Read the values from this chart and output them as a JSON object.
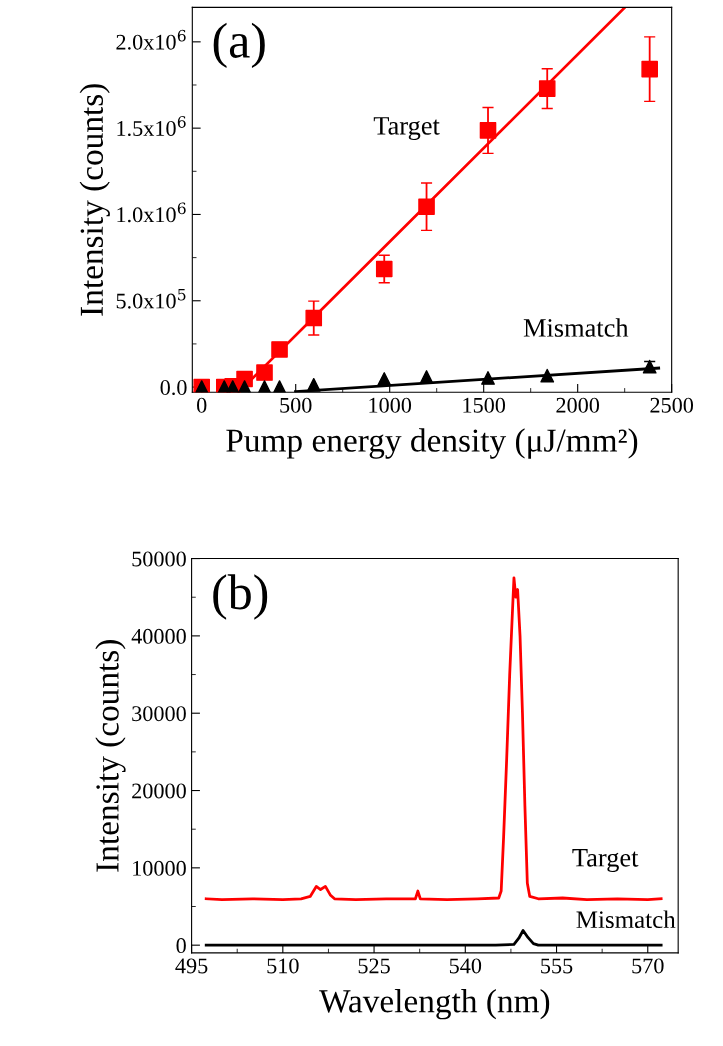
{
  "chart_data": [
    {
      "type": "scatter",
      "xlabel": "Pump energy density (μJ/mm²)",
      "ylabel": "Intensity (counts)",
      "xlim": [
        -50,
        2500
      ],
      "ylim": [
        -30000,
        2200000
      ],
      "xticks": [
        0,
        500,
        1000,
        1500,
        2000,
        2500
      ],
      "yticks": [
        {
          "value": 0,
          "label": "0.0"
        },
        {
          "value": 500000,
          "label": "5.0x10$^{5}$"
        },
        {
          "value": 1000000,
          "label": "1.0x10$^{6}$"
        },
        {
          "value": 1500000,
          "label": "1.5x10$^{6}$"
        },
        {
          "value": 2000000,
          "label": "2.0x10$^{6}$"
        }
      ],
      "annotations": [
        "(a)",
        "Target",
        "Mismatch"
      ],
      "series": [
        {
          "marker": "square",
          "color": "#ff0000",
          "x": [
            0,
            120,
            165,
            228,
            334,
            414,
            596,
            971,
            1196,
            1523,
            1838,
            2383
          ],
          "values": [
            0,
            0,
            5000,
            47000,
            84000,
            218000,
            400000,
            684000,
            1045000,
            1487000,
            1729000,
            1842000
          ],
          "errors": [
            null,
            null,
            null,
            null,
            null,
            null,
            98000,
            80000,
            137000,
            133000,
            115000,
            187000
          ]
        },
        {
          "type": "line",
          "marker": "none",
          "color": "#ff0000",
          "x": [
            196,
            2249
          ],
          "values": [
            -30000,
            2197000
          ]
        },
        {
          "marker": "triangle",
          "color": "#000000",
          "x": [
            0,
            120,
            165,
            228,
            334,
            414,
            596,
            971,
            1196,
            1523,
            1838,
            2383
          ],
          "values": [
            0,
            0,
            0,
            0,
            0,
            0,
            13000,
            47000,
            58000,
            53000,
            66000,
            118000
          ],
          "errors": [
            null,
            null,
            null,
            null,
            null,
            null,
            null,
            null,
            null,
            null,
            null,
            30000
          ]
        },
        {
          "type": "line",
          "marker": "none",
          "color": "#000000",
          "x": [
            499,
            2431
          ],
          "values": [
            -26000,
            110000
          ]
        }
      ]
    },
    {
      "type": "line",
      "xlabel": "Wavelength (nm)",
      "ylabel": "Intensity (counts)",
      "xlim": [
        495,
        575
      ],
      "ylim": [
        -1000,
        50000
      ],
      "xticks": [
        495,
        510,
        525,
        540,
        555,
        570
      ],
      "yticks": [
        0,
        10000,
        20000,
        30000,
        40000,
        50000
      ],
      "annotations": [
        "(b)",
        "Target",
        "Mismatch"
      ],
      "series": [
        {
          "marker": "none",
          "color": "#ff0000",
          "x": [
            497.4,
            500,
            505,
            510,
            513,
            514.5,
            515.5,
            516.2,
            517,
            517.8,
            518.5,
            522,
            527,
            531.8,
            532.2,
            532.6,
            537,
            542,
            545.5,
            545.9,
            546.3,
            546.8,
            547.3,
            547.8,
            548.0,
            548.3,
            548.6,
            549,
            549.4,
            549.8,
            550.2,
            550.6,
            552,
            556,
            560,
            565,
            570,
            572.2
          ],
          "values": [
            6000,
            5900,
            6000,
            5900,
            6000,
            6300,
            7600,
            7200,
            7600,
            6500,
            6000,
            5900,
            6000,
            6000,
            7000,
            6000,
            5900,
            6000,
            6100,
            7000,
            14000,
            24000,
            35000,
            44000,
            47500,
            45000,
            46000,
            40000,
            30000,
            18000,
            8000,
            6300,
            6000,
            6100,
            5900,
            6000,
            5900,
            6000
          ]
        },
        {
          "marker": "none",
          "color": "#000000",
          "x": [
            497.4,
            510,
            530,
            545,
            548,
            548.8,
            549.5,
            550.3,
            551.2,
            552,
            560,
            572.2
          ],
          "values": [
            0,
            0,
            0,
            0,
            100,
            900,
            1900,
            1000,
            200,
            0,
            0,
            0
          ]
        }
      ]
    }
  ]
}
